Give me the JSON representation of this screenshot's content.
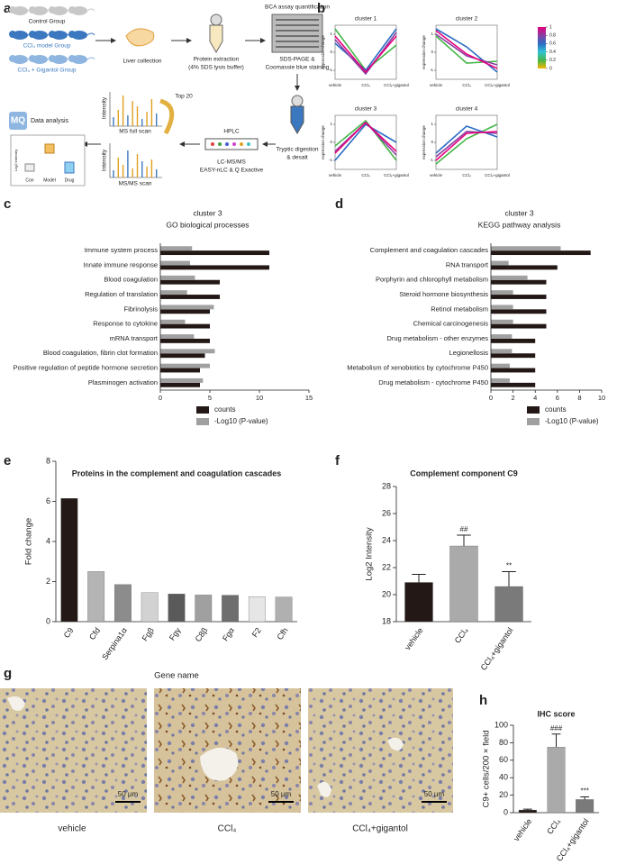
{
  "panel_labels": [
    "a",
    "b",
    "c",
    "d",
    "e",
    "f",
    "g",
    "h"
  ],
  "workflow": {
    "groups": [
      "Control Group",
      "CCl₄ model Group",
      "CCl₄ + Gigantol Group"
    ],
    "liver": "Liver collection",
    "extraction": [
      "Protein extraction",
      "(4% SDS lysis buffer)"
    ],
    "bca": "BCA assay quantification",
    "sds": [
      "SDS-PAGE &",
      "Coomassie blue staining"
    ],
    "digestion": [
      "Tryptic digestion",
      "& desalt"
    ],
    "hplc": "HPLC",
    "lcms": [
      "LC-MS/MS",
      "EASY-nLC & Q Exactive"
    ],
    "top": "Top 20",
    "intensity": "Intensity",
    "ms_full": "MS full scan",
    "ms_ms": "MS/MS scan",
    "logo": "MQ",
    "analysis": "Data analysis",
    "box_ylabel": "Log2 intensity",
    "box_groups": [
      "Con",
      "Model",
      "Drug"
    ]
  },
  "colorbar": {
    "ticks": [
      1,
      0.8,
      0.6,
      0.4,
      0.2,
      0
    ],
    "colors": [
      "#e6007e",
      "#8a3ea0",
      "#2b6cc4",
      "#33c3d6",
      "#45b649",
      "#f7b500"
    ]
  },
  "images": {
    "labels": [
      "vehicle",
      "CCl₄",
      "CCl₄+gigantol"
    ],
    "scale_bar": "50 μm"
  },
  "chart_data": [
    {
      "type": "line",
      "title": "cluster 1",
      "ylabel": "expression change",
      "categories": [
        "vehicle",
        "CCl₄",
        "CCl₄+gigantol"
      ],
      "ylim": [
        -1.5,
        1.5
      ],
      "yticks": [
        -1,
        0,
        1
      ],
      "series": [
        {
          "color": "#45b649",
          "values": [
            1.3,
            -1.0,
            0.4
          ]
        },
        {
          "color": "#2b6cc4",
          "values": [
            0.5,
            -1.0,
            1.3
          ]
        },
        {
          "color": "#8a3ea0",
          "values": [
            0.7,
            -1.2,
            1.1
          ]
        },
        {
          "color": "#e6007e",
          "values": [
            0.9,
            -1.1,
            0.9
          ]
        }
      ]
    },
    {
      "type": "line",
      "title": "cluster 2",
      "ylabel": "expression change",
      "categories": [
        "vehicle",
        "CCl₄",
        "CCl₄+gigantol"
      ],
      "ylim": [
        -1.5,
        1.5
      ],
      "yticks": [
        -1,
        0,
        1
      ],
      "series": [
        {
          "color": "#45b649",
          "values": [
            0.9,
            -0.6,
            -0.5
          ]
        },
        {
          "color": "#2b6cc4",
          "values": [
            1.3,
            0.3,
            -1.1
          ]
        },
        {
          "color": "#8a3ea0",
          "values": [
            1.0,
            -0.2,
            -0.7
          ]
        },
        {
          "color": "#e6007e",
          "values": [
            1.2,
            -0.1,
            -0.9
          ]
        }
      ]
    },
    {
      "type": "line",
      "title": "cluster 3",
      "ylabel": "expression change",
      "categories": [
        "vehicle",
        "CCl₄",
        "CCl₄+gigantol"
      ],
      "ylim": [
        -1.5,
        1.5
      ],
      "yticks": [
        -1,
        0,
        1
      ],
      "series": [
        {
          "color": "#45b649",
          "values": [
            -0.2,
            1.2,
            -1.0
          ]
        },
        {
          "color": "#2b6cc4",
          "values": [
            -1.0,
            1.0,
            0.0
          ]
        },
        {
          "color": "#8a3ea0",
          "values": [
            -0.5,
            1.1,
            -0.7
          ]
        },
        {
          "color": "#e6007e",
          "values": [
            -0.6,
            1.1,
            -0.5
          ]
        }
      ]
    },
    {
      "type": "line",
      "title": "cluster 4",
      "ylabel": "expression change",
      "categories": [
        "vehicle",
        "CCl₄",
        "CCl₄+gigantol"
      ],
      "ylim": [
        -1.5,
        1.5
      ],
      "yticks": [
        -1,
        0,
        1
      ],
      "series": [
        {
          "color": "#45b649",
          "values": [
            -1.2,
            0.2,
            1.0
          ]
        },
        {
          "color": "#2b6cc4",
          "values": [
            -0.6,
            0.9,
            0.3
          ]
        },
        {
          "color": "#8a3ea0",
          "values": [
            -0.8,
            0.6,
            0.5
          ]
        },
        {
          "color": "#e6007e",
          "values": [
            -1.0,
            0.5,
            0.6
          ]
        }
      ]
    },
    {
      "type": "bar",
      "orientation": "horizontal",
      "title": "cluster 3",
      "subtitle": "GO biological processes",
      "categories": [
        "Immune system process",
        "Innate immune response",
        "Blood coagulation",
        "Regulation of translation",
        "Fibrinolysis",
        "Response to cytokine",
        "mRNA transport",
        "Blood coagulation, fibrin clot formation",
        "Positive regulation of peptide hormone secretion",
        "Plasminogen activation"
      ],
      "series": [
        {
          "name": "counts",
          "color": "#231815",
          "values": [
            11,
            11,
            6,
            6,
            5,
            5,
            5,
            4.5,
            4,
            4
          ]
        },
        {
          "name": "-Log10 (P-value)",
          "color": "#a0a0a0",
          "values": [
            3.2,
            3,
            3.5,
            2.7,
            5.4,
            2.5,
            3.4,
            5.5,
            5,
            4.3
          ]
        }
      ],
      "xlim": [
        0,
        15
      ],
      "xticks": [
        0,
        5,
        10,
        15
      ]
    },
    {
      "type": "bar",
      "orientation": "horizontal",
      "title": "cluster 3",
      "subtitle": "KEGG pathway analysis",
      "categories": [
        "Complement and coagulation cascades",
        "RNA transport",
        "Porphyrin and chlorophyll metabolism",
        "Steroid hormone biosynthesis",
        "Retinol metabolism",
        "Chemical carcinogenesis",
        "Drug metabolism - other enzymes",
        "Legionellosis",
        "Metabolism of xenobiotics by cytochrome P450",
        "Drug metabolism - cytochrome P450"
      ],
      "series": [
        {
          "name": "counts",
          "color": "#231815",
          "values": [
            9,
            6,
            5,
            5,
            5,
            5,
            4,
            4,
            4,
            4
          ]
        },
        {
          "name": "-Log10 (P-value)",
          "color": "#a0a0a0",
          "values": [
            6.3,
            1.6,
            3.3,
            2,
            2,
            2,
            1.9,
            1.9,
            1.7,
            1.7
          ]
        }
      ],
      "xlim": [
        0,
        10
      ],
      "xticks": [
        0,
        2,
        4,
        6,
        8,
        10
      ]
    },
    {
      "type": "bar",
      "title": "Proteins in the complement and coagulation cascades",
      "ylabel": "Fold  change",
      "xlabel": "Gene name",
      "categories": [
        "C9",
        "Cfd",
        "Serpina1α",
        "Fgβ",
        "Fgγ",
        "C8β",
        "Fgα",
        "F2",
        "Cfh"
      ],
      "values": [
        6.15,
        2.5,
        1.85,
        1.45,
        1.38,
        1.33,
        1.32,
        1.25,
        1.23
      ],
      "colors": [
        "#231815",
        "#b4b4b4",
        "#8c8c8c",
        "#d2d2d2",
        "#5a5a5a",
        "#a0a0a0",
        "#6e6e6e",
        "#e6e6e6",
        "#b0b0b0"
      ],
      "ylim": [
        0,
        8
      ],
      "yticks": [
        0,
        2,
        4,
        6,
        8
      ]
    },
    {
      "type": "bar",
      "title": "Complement component C9",
      "ylabel": "Log2 Intensity",
      "categories": [
        "vehicle",
        "CCl₄",
        "CCl₄+gigantol"
      ],
      "values": [
        20.9,
        23.6,
        20.6
      ],
      "errors": [
        0.6,
        0.8,
        1.1
      ],
      "annotations": [
        null,
        "##",
        "**"
      ],
      "colors": [
        "#231815",
        "#aaaaaa",
        "#7a7a7a"
      ],
      "ylim": [
        18,
        28
      ],
      "yticks": [
        18,
        20,
        22,
        24,
        26,
        28
      ]
    },
    {
      "type": "bar",
      "title": "IHC score",
      "ylabel": "C9+ cells/200 × field",
      "categories": [
        "vehicle",
        "CCl₄",
        "CCl₄+gigantol"
      ],
      "values": [
        3,
        75,
        15
      ],
      "errors": [
        1,
        15,
        3
      ],
      "annotations": [
        null,
        "###",
        "***"
      ],
      "colors": [
        "#231815",
        "#aaaaaa",
        "#7a7a7a"
      ],
      "ylim": [
        0,
        100
      ],
      "yticks": [
        0,
        20,
        40,
        60,
        80,
        100
      ]
    }
  ]
}
